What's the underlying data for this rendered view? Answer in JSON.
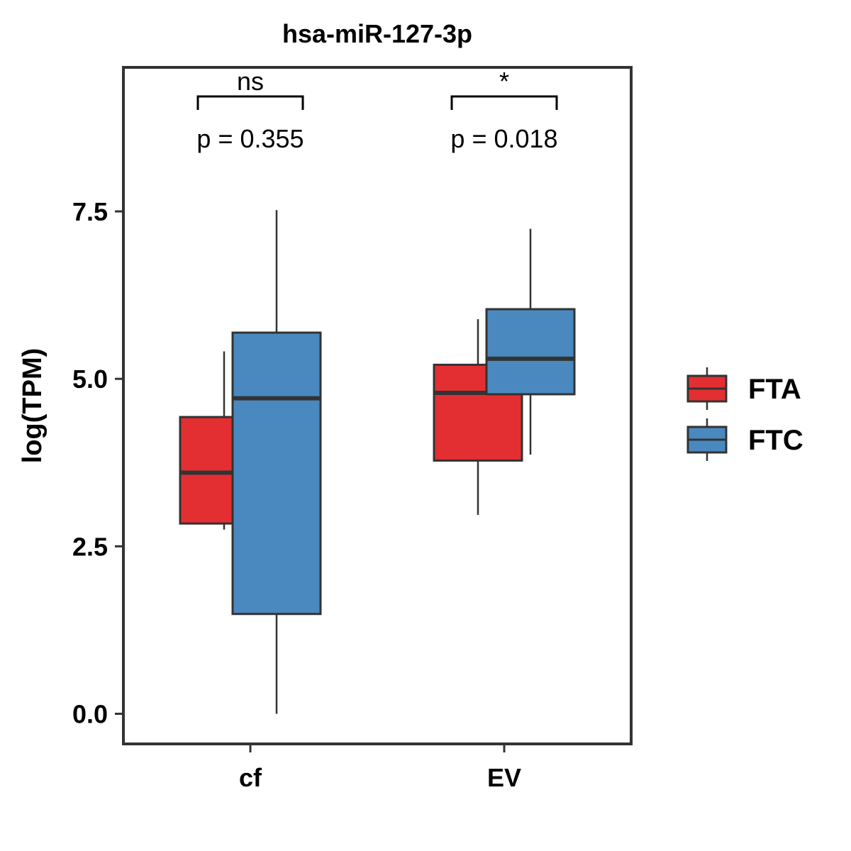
{
  "chart_data": {
    "type": "box",
    "title": "hsa-miR-127-3p",
    "xlabel": "",
    "ylabel": "log(TPM)",
    "categories": [
      "cf",
      "EV"
    ],
    "yticks": [
      0.0,
      2.5,
      5.0,
      7.5
    ],
    "ytick_labels": [
      "0.0",
      "2.5",
      "5.0",
      "7.5"
    ],
    "ylim": [
      -0.45,
      9.65
    ],
    "grid": false,
    "legend_position": "right",
    "series": [
      {
        "name": "FTA",
        "color": "#e32f32",
        "boxes": [
          {
            "category": "cf",
            "min": 2.75,
            "q1": 2.84,
            "median": 3.6,
            "q3": 4.43,
            "max": 5.41
          },
          {
            "category": "EV",
            "min": 2.97,
            "q1": 3.78,
            "median": 4.79,
            "q3": 5.21,
            "max": 5.89
          }
        ]
      },
      {
        "name": "FTC",
        "color": "#4a89bf",
        "boxes": [
          {
            "category": "cf",
            "min": 0.0,
            "q1": 1.49,
            "median": 4.71,
            "q3": 5.69,
            "max": 7.52
          },
          {
            "category": "EV",
            "min": 3.87,
            "q1": 4.77,
            "median": 5.3,
            "q3": 6.04,
            "max": 7.24
          }
        ]
      }
    ],
    "annotations": [
      {
        "category": "cf",
        "significance": "ns",
        "p_text": "p = 0.355"
      },
      {
        "category": "EV",
        "significance": "*",
        "p_text": "p = 0.018"
      }
    ]
  }
}
